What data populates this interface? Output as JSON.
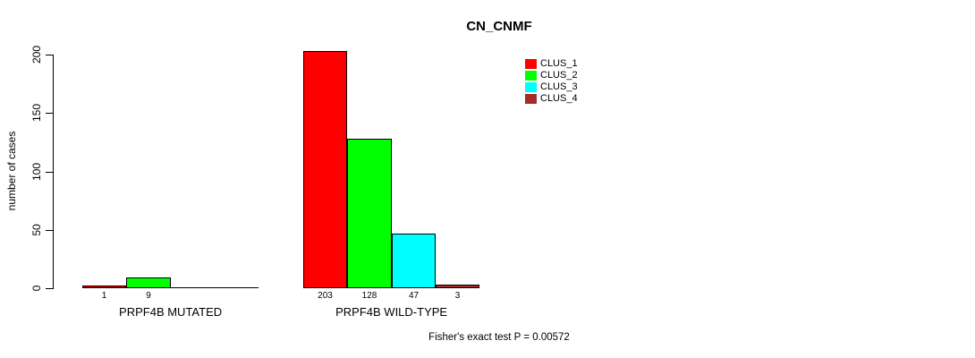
{
  "title": "CN_CNMF",
  "footer": "Fisher's exact test P = 0.00572",
  "legend": {
    "items": [
      {
        "label": "CLUS_1",
        "color": "#FF0000"
      },
      {
        "label": "CLUS_2",
        "color": "#00FF00"
      },
      {
        "label": "CLUS_3",
        "color": "#00FFFF"
      },
      {
        "label": "CLUS_4",
        "color": "#A52A2A"
      }
    ]
  },
  "chart_data": {
    "type": "bar",
    "title": "CN_CNMF",
    "xlabel": "",
    "ylabel": "number of cases",
    "ylim": [
      0,
      200
    ],
    "yticks": [
      0,
      50,
      100,
      150,
      200
    ],
    "grid": false,
    "legend_position": "top-right",
    "categories": [
      "PRPF4B MUTATED",
      "PRPF4B WILD-TYPE"
    ],
    "series": [
      {
        "name": "CLUS_1",
        "color": "#FF0000",
        "values": [
          1,
          203
        ]
      },
      {
        "name": "CLUS_2",
        "color": "#00FF00",
        "values": [
          9,
          128
        ]
      },
      {
        "name": "CLUS_3",
        "color": "#00FFFF",
        "values": [
          0,
          47
        ]
      },
      {
        "name": "CLUS_4",
        "color": "#A52A2A",
        "values": [
          0,
          3
        ]
      }
    ],
    "bar_value_labels_shown": true,
    "zero_value_labels_hidden": true,
    "annotation": "Fisher's exact test P = 0.00572"
  }
}
